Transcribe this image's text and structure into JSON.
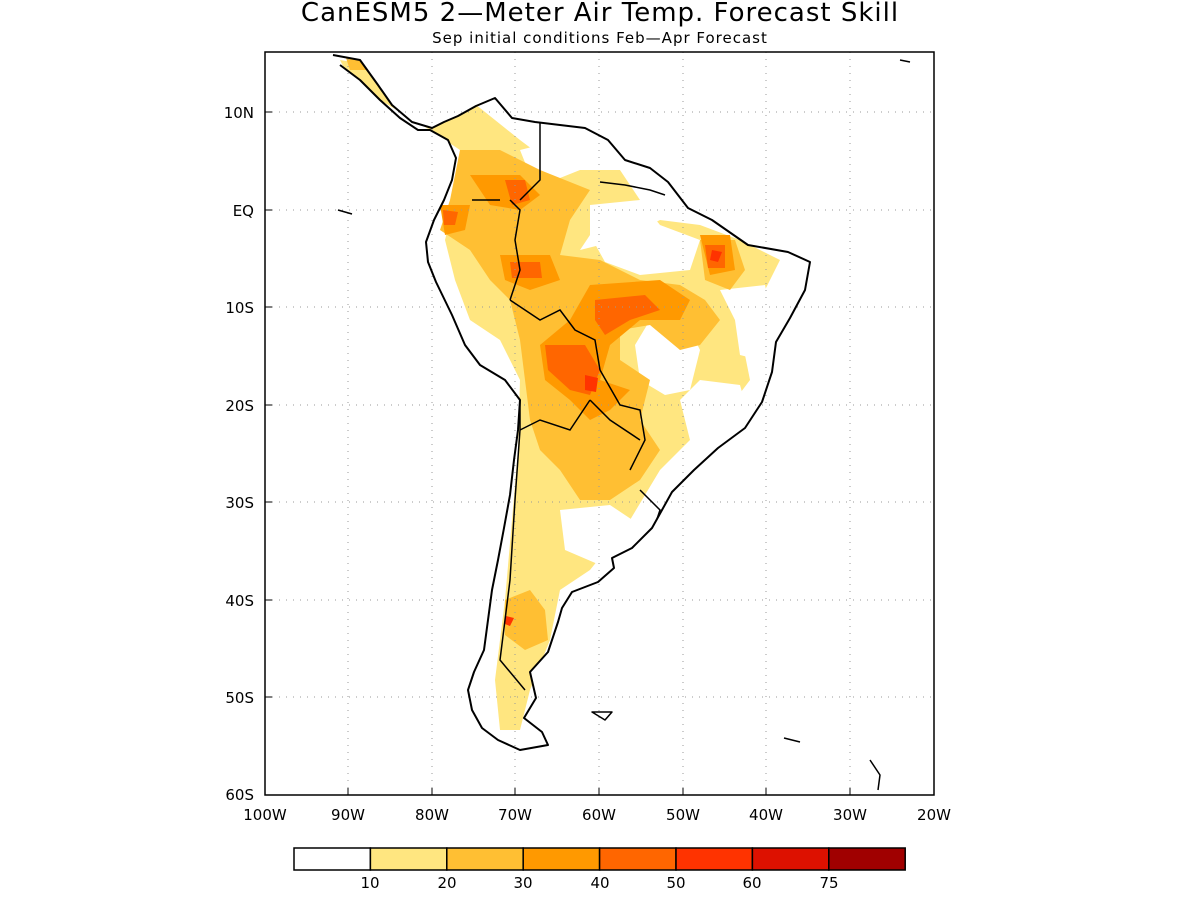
{
  "title": "CanESM5 2—Meter Air Temp. Forecast Skill",
  "subtitle": "Sep initial conditions  Feb—Apr Forecast",
  "map": {
    "lon_range": [
      -100,
      -20
    ],
    "lat_range": [
      -60,
      15
    ],
    "x_ticks": [
      "100W",
      "90W",
      "80W",
      "70W",
      "60W",
      "50W",
      "40W",
      "30W",
      "20W"
    ],
    "y_ticks": [
      "10N",
      "EQ",
      "10S",
      "20S",
      "30S",
      "40S",
      "50S",
      "60S"
    ],
    "grid": "dotted"
  },
  "colorbar": {
    "colors": [
      "#ffffff",
      "#ffe680",
      "#ffbf33",
      "#ff9900",
      "#ff6600",
      "#ff3300",
      "#dd1100",
      "#a00000"
    ],
    "labels": [
      "10",
      "20",
      "30",
      "40",
      "50",
      "60",
      "75"
    ]
  }
}
